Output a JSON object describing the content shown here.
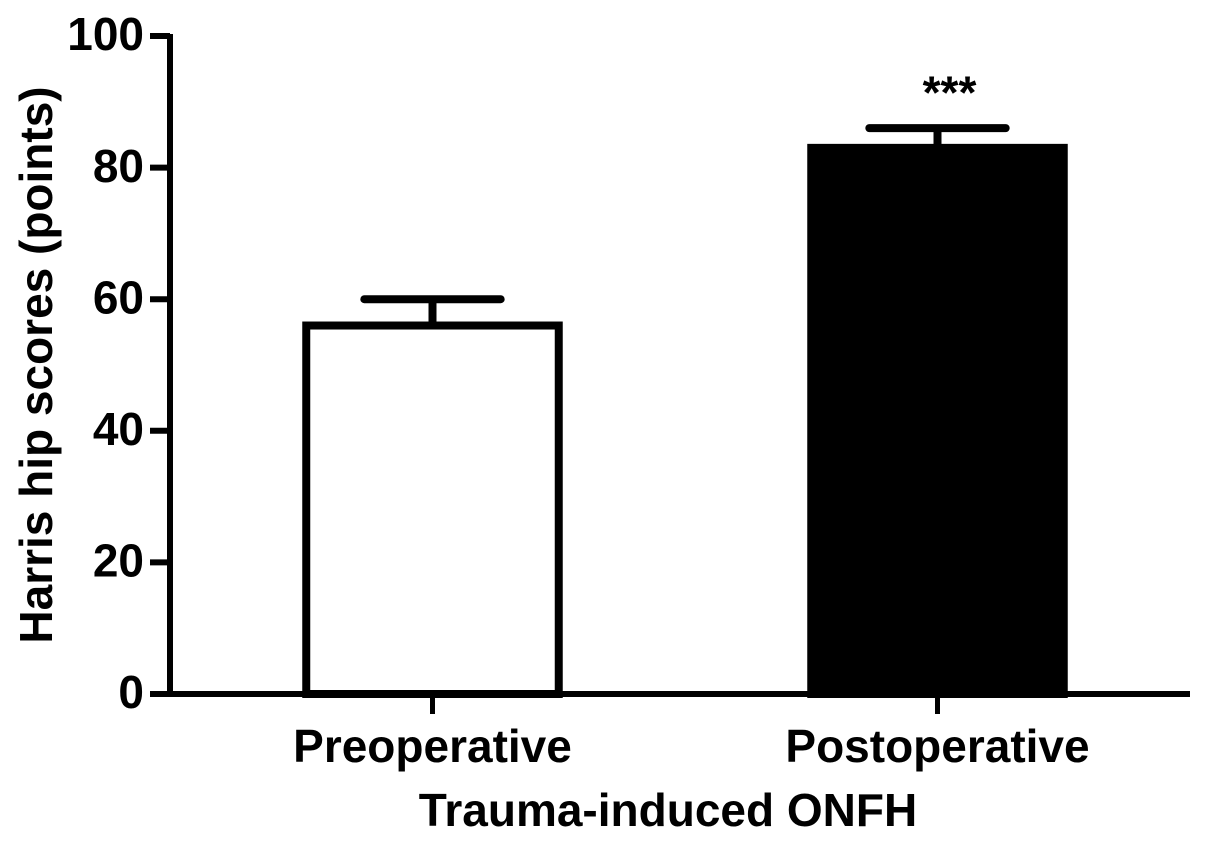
{
  "chart_data": {
    "type": "bar",
    "y_label": "Harris hip scores (points)",
    "x_label": "Trauma-induced ONFH",
    "categories": [
      "Preoperative",
      "Postoperative"
    ],
    "values": [
      56,
      83
    ],
    "errors": [
      4,
      3
    ],
    "colors": [
      "#ffffff",
      "#000000"
    ],
    "edge_color": "#000000",
    "ylim": [
      0,
      100
    ],
    "yticks": [
      0,
      20,
      40,
      60,
      80,
      100
    ],
    "grid": false,
    "annotations": [
      {
        "text": "***",
        "category": "Postoperative"
      }
    ]
  }
}
